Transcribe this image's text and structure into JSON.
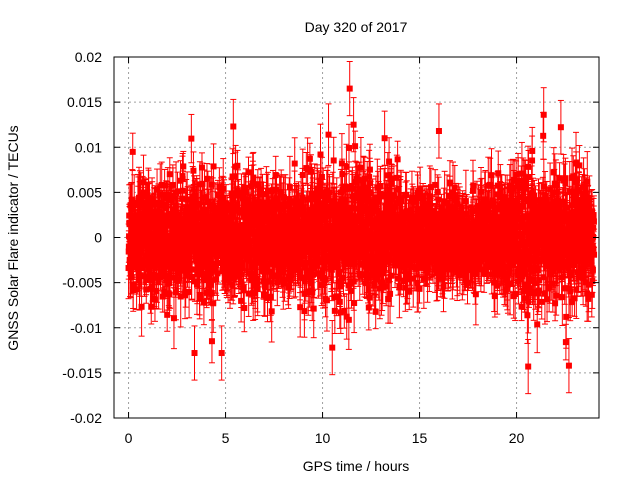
{
  "chart_data": {
    "type": "scatter",
    "title": "Day 320 of 2017",
    "xlabel": "GPS time / hours",
    "ylabel": "GNSS Solar Flare indicator / TECUs",
    "xlim": [
      -0.75,
      24.25
    ],
    "ylim": [
      -0.02,
      0.02
    ],
    "xticks": [
      0,
      5,
      10,
      15,
      20
    ],
    "xtick_labels": [
      "0",
      "5",
      "10",
      "15",
      "20"
    ],
    "yticks": [
      -0.02,
      -0.015,
      -0.01,
      -0.005,
      0,
      0.005,
      0.01,
      0.015,
      0.02
    ],
    "ytick_labels": [
      "-0.02",
      "-0.015",
      "-0.01",
      "-0.005",
      "0",
      "0.005",
      "0.01",
      "0.015",
      "0.02"
    ],
    "grid": true,
    "error_bars": true,
    "marker": "square",
    "color": "#ff0000",
    "series": [
      {
        "name": "GNSS Solar Flare indicator",
        "x_range": [
          0,
          24
        ],
        "sample_interval_hours": 0.0083,
        "typical_spread": 0.005,
        "typical_error": 0.0025,
        "notable_points": [
          {
            "x": 11.4,
            "y": 0.0165
          },
          {
            "x": 11.6,
            "y": 0.0125
          },
          {
            "x": 5.4,
            "y": 0.0123
          },
          {
            "x": 13.2,
            "y": 0.011
          },
          {
            "x": 16.0,
            "y": 0.0118
          },
          {
            "x": 21.4,
            "y": 0.0136
          },
          {
            "x": 20.6,
            "y": -0.0143
          },
          {
            "x": 22.7,
            "y": -0.0142
          },
          {
            "x": 4.8,
            "y": -0.0128
          },
          {
            "x": 3.4,
            "y": -0.0128
          },
          {
            "x": 10.5,
            "y": -0.0122
          }
        ]
      }
    ]
  }
}
